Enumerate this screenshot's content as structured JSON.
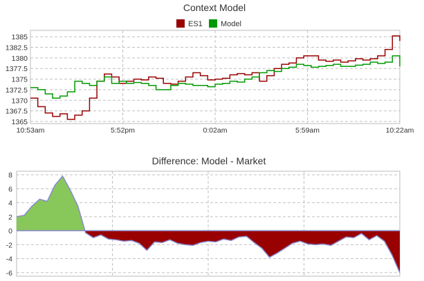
{
  "chart_data": [
    {
      "type": "line",
      "title": "Context Model",
      "legend": {
        "placement": "top-center"
      },
      "x_ticks": [
        "10:53am",
        "5:52pm",
        "0:02am",
        "5:59am",
        "10:22am"
      ],
      "y_ticks": [
        "1365",
        "1367.5",
        "1370",
        "1372.5",
        "1375",
        "1377.5",
        "1380",
        "1382.5",
        "1385"
      ],
      "ylim": [
        1364.5,
        1386.5
      ],
      "grid": true,
      "series": [
        {
          "name": "ES1",
          "color": "#990000",
          "x": [
            0,
            2,
            4,
            6,
            8,
            10,
            12,
            14,
            16,
            18,
            20,
            22,
            24,
            26,
            28,
            30,
            32,
            34,
            36,
            38,
            40,
            42,
            44,
            46,
            48,
            50,
            52,
            54,
            56,
            58,
            60,
            62,
            64,
            66,
            68,
            70,
            72,
            74,
            76,
            78,
            80,
            82,
            84,
            86,
            88,
            90,
            92,
            94,
            96,
            98,
            100
          ],
          "y": [
            1370.5,
            1368.5,
            1367,
            1366.2,
            1366.8,
            1365.5,
            1366.5,
            1367.5,
            1370.5,
            1374.5,
            1376.2,
            1375.5,
            1374,
            1374.5,
            1375,
            1374.8,
            1375.5,
            1375.2,
            1374,
            1373.8,
            1374.5,
            1375.5,
            1376.5,
            1375.8,
            1374.8,
            1375,
            1375.2,
            1376,
            1376.3,
            1376,
            1376.5,
            1374.5,
            1375.8,
            1377.5,
            1378.5,
            1378.8,
            1380,
            1380.5,
            1380.5,
            1379.5,
            1379.2,
            1379.5,
            1379,
            1379.3,
            1379.8,
            1379.5,
            1379.8,
            1380.5,
            1382,
            1385.2,
            1384
          ]
        },
        {
          "name": "Model",
          "color": "#009900",
          "x": [
            0,
            2,
            4,
            6,
            8,
            10,
            12,
            14,
            16,
            18,
            20,
            22,
            24,
            26,
            28,
            30,
            32,
            34,
            36,
            38,
            40,
            42,
            44,
            46,
            48,
            50,
            52,
            54,
            56,
            58,
            60,
            62,
            64,
            66,
            68,
            70,
            72,
            74,
            76,
            78,
            80,
            82,
            84,
            86,
            88,
            90,
            92,
            94,
            96,
            98,
            100
          ],
          "y": [
            1373,
            1372.5,
            1371.5,
            1370.5,
            1371,
            1372,
            1374.5,
            1374,
            1373.5,
            1374.5,
            1375.5,
            1374,
            1374.5,
            1374,
            1374.2,
            1374,
            1373.5,
            1372.5,
            1372.5,
            1373.5,
            1374,
            1373.8,
            1373.5,
            1373.5,
            1373.2,
            1373.8,
            1374,
            1374.5,
            1374.3,
            1375,
            1375.5,
            1376.5,
            1377,
            1376.8,
            1377.5,
            1377.8,
            1378.5,
            1378.2,
            1377.8,
            1378,
            1378.2,
            1378.5,
            1378,
            1378,
            1378.3,
            1378.5,
            1379,
            1378.7,
            1379,
            1380.5,
            1378
          ]
        }
      ]
    },
    {
      "type": "area",
      "title": "Difference: Model - Market",
      "x_ticks": [],
      "y_ticks": [
        "-6",
        "-4",
        "-2",
        "0",
        "2",
        "4",
        "6",
        "8"
      ],
      "ylim": [
        -6.5,
        8.5
      ],
      "grid": true,
      "series": [
        {
          "x": [
            0,
            2,
            4,
            6,
            8,
            10,
            12,
            14,
            16,
            18,
            20,
            22,
            24,
            26,
            28,
            30,
            32,
            34,
            36,
            38,
            40,
            42,
            44,
            46,
            48,
            50,
            52,
            54,
            56,
            58,
            60,
            62,
            64,
            66,
            68,
            70,
            72,
            74,
            76,
            78,
            80,
            82,
            84,
            86,
            88,
            90,
            92,
            94,
            96,
            98,
            100
          ],
          "y": [
            2,
            2.2,
            3.5,
            4.5,
            4.2,
            6.5,
            7.8,
            5.8,
            3.5,
            -0.3,
            -1,
            -0.6,
            -1.2,
            -1.3,
            -1.5,
            -1.4,
            -1.8,
            -2.8,
            -1.6,
            -1.7,
            -1.3,
            -1.8,
            -2,
            -2.1,
            -1.7,
            -1.5,
            -1.6,
            -1.2,
            -1.4,
            -0.9,
            -0.8,
            -1.7,
            -2.5,
            -3.8,
            -3.2,
            -2.5,
            -1.8,
            -1.5,
            -1.9,
            -2,
            -1.9,
            -2.1,
            -1.5,
            -0.9,
            -1,
            -0.4,
            -1.3,
            -0.7,
            -1.5,
            -3.5,
            -6
          ]
        }
      ]
    }
  ]
}
